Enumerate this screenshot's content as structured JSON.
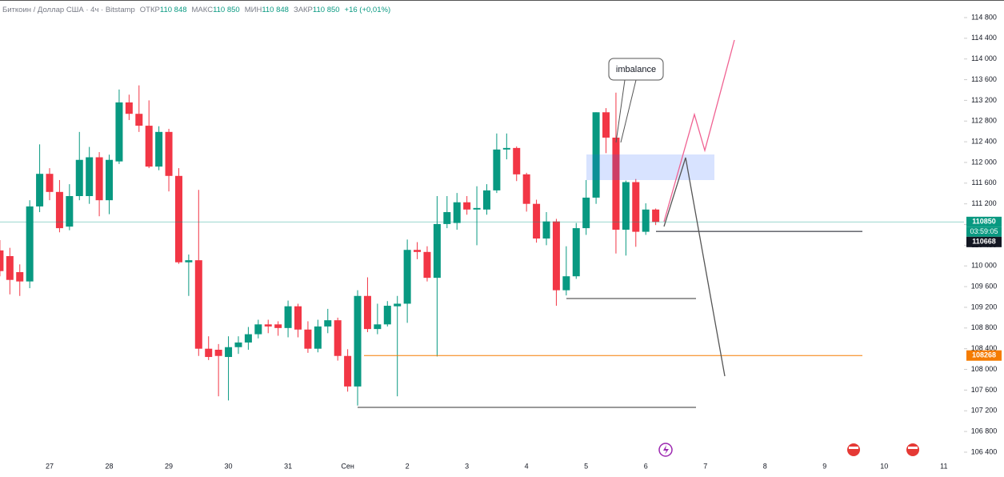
{
  "header": {
    "symbol": "Биткоин / Доллар США · 4ч · Bitstamp",
    "open_label": "ОТКР",
    "open": "110 848",
    "high_label": "МАКС",
    "high": "110 850",
    "low_label": "МИН",
    "low": "110 848",
    "close_label": "ЗАКР",
    "close": "110 850",
    "change": "+16 (+0,01%)"
  },
  "chart_data": {
    "type": "candlestick",
    "annotation": "imbalance",
    "categories": [
      null,
      null,
      null,
      null,
      null,
      "27",
      null,
      null,
      null,
      null,
      null,
      "28",
      null,
      null,
      null,
      null,
      null,
      "29",
      null,
      null,
      null,
      null,
      null,
      "30",
      null,
      null,
      null,
      null,
      null,
      "31",
      null,
      null,
      null,
      null,
      null,
      "Сен",
      null,
      null,
      null,
      null,
      null,
      "2",
      null,
      null,
      null,
      null,
      null,
      "3",
      null,
      null,
      null,
      null,
      null,
      "4",
      null,
      null,
      null,
      null,
      null,
      "5",
      null,
      null,
      null,
      null,
      null,
      "6",
      null,
      null,
      null,
      null,
      null,
      "7",
      null,
      null,
      null,
      null,
      null,
      "8",
      null,
      null,
      null,
      null,
      null,
      "9",
      null,
      null,
      null,
      null,
      null,
      "10",
      null,
      null,
      null,
      null,
      null,
      "11"
    ],
    "open": [
      110300,
      110190,
      109880,
      109700,
      111150,
      111780,
      111430,
      110760,
      111350,
      111350,
      112100,
      111270,
      112020,
      113160,
      112940,
      112710,
      111920,
      112590,
      111740,
      110070,
      110110,
      108400,
      108380,
      108240,
      108430,
      108520,
      108680,
      108870,
      108870,
      108800,
      109220,
      108770,
      108400,
      108830,
      108950,
      108260,
      107670,
      109420,
      108780,
      108870,
      109220,
      109270,
      110310,
      110270,
      109770,
      110810,
      110830,
      111230,
      111090,
      111090,
      111460,
      112250,
      112280,
      111770,
      111200,
      110530,
      110860,
      109530,
      109800,
      110730,
      111320,
      112970,
      112480,
      110700,
      111620,
      110660,
      111090,
      null,
      null,
      null,
      null,
      null,
      null,
      null,
      null,
      null,
      null,
      null,
      null,
      null,
      null,
      null,
      null,
      null,
      null,
      null,
      null,
      null,
      null,
      null,
      null,
      null,
      null,
      null,
      null,
      null
    ],
    "high": [
      110500,
      110350,
      110030,
      111270,
      112350,
      111890,
      111660,
      111580,
      112590,
      112300,
      112200,
      112150,
      113410,
      113310,
      113490,
      113200,
      112700,
      112650,
      111890,
      110220,
      111470,
      108640,
      108490,
      108640,
      108640,
      108820,
      108960,
      108960,
      108930,
      109330,
      109270,
      108930,
      108960,
      109170,
      109000,
      108390,
      109530,
      109780,
      109270,
      109320,
      109420,
      110510,
      110460,
      110380,
      111350,
      111350,
      111410,
      111350,
      111540,
      111580,
      112560,
      112560,
      112310,
      111800,
      111280,
      111040,
      110910,
      110380,
      110830,
      111660,
      112970,
      113050,
      113350,
      111650,
      111680,
      111210,
      111110,
      null,
      null,
      null,
      null,
      null,
      null,
      null,
      null,
      null,
      null,
      null,
      null,
      null,
      null,
      null,
      null,
      null,
      null,
      null,
      null,
      null,
      null,
      null,
      null,
      null,
      null,
      null,
      null,
      null
    ],
    "low": [
      109800,
      109450,
      109420,
      109570,
      111040,
      111270,
      110650,
      110690,
      111270,
      111200,
      110960,
      111000,
      111970,
      112820,
      112590,
      111890,
      111850,
      111440,
      110040,
      109420,
      108260,
      108180,
      107480,
      107400,
      108300,
      108380,
      108600,
      108700,
      108650,
      108620,
      108620,
      108320,
      108330,
      108700,
      108170,
      107570,
      107300,
      108720,
      108680,
      108830,
      107480,
      108900,
      110130,
      109700,
      108250,
      110730,
      110700,
      110990,
      110400,
      110990,
      111410,
      112060,
      111640,
      111050,
      110450,
      110400,
      109230,
      109430,
      109750,
      110600,
      111200,
      112180,
      110240,
      110200,
      110370,
      110600,
      110790,
      null,
      null,
      null,
      null,
      null,
      null,
      null,
      null,
      null,
      null,
      null,
      null,
      null,
      null,
      null,
      null,
      null,
      null,
      null,
      null,
      null,
      null,
      null,
      null,
      null,
      null,
      null,
      null,
      null
    ],
    "close": [
      109900,
      109730,
      109700,
      111150,
      111780,
      111430,
      110730,
      111350,
      112050,
      112100,
      111270,
      112050,
      113160,
      112940,
      112710,
      111920,
      112590,
      111740,
      110070,
      110110,
      108400,
      108240,
      108260,
      108430,
      108520,
      108680,
      108870,
      108830,
      108800,
      109220,
      108770,
      108400,
      108830,
      108950,
      108260,
      107670,
      109420,
      108780,
      108870,
      109230,
      109270,
      110310,
      110270,
      109770,
      110810,
      111040,
      111230,
      111090,
      111120,
      111460,
      112250,
      112280,
      111770,
      111200,
      110530,
      110860,
      109530,
      109800,
      110730,
      111320,
      112970,
      112480,
      110700,
      111620,
      110660,
      111090,
      110850,
      null,
      null,
      null,
      null,
      null,
      null,
      null,
      null,
      null,
      null,
      null,
      null,
      null,
      null,
      null,
      null,
      null,
      null,
      null,
      null,
      null,
      null,
      null,
      null,
      null,
      null,
      null,
      null,
      null
    ],
    "up_color": "#089981",
    "down_color": "#f23645",
    "ylim": [
      106245,
      115140
    ],
    "yticks": [
      {
        "value": 106400,
        "label": "106 400"
      },
      {
        "value": 106800,
        "label": "106 800"
      },
      {
        "value": 107200,
        "label": "107 200"
      },
      {
        "value": 107600,
        "label": "107 600"
      },
      {
        "value": 108000,
        "label": "108 000"
      },
      {
        "value": 108400,
        "label": "108 400"
      },
      {
        "value": 108800,
        "label": "108 800"
      },
      {
        "value": 109200,
        "label": "109 200"
      },
      {
        "value": 109600,
        "label": "109 600"
      },
      {
        "value": 110000,
        "label": "110 000"
      },
      {
        "value": 110400,
        "label": "110 400"
      },
      {
        "value": 110800,
        "label": "110 800"
      },
      {
        "value": 111200,
        "label": "111 200"
      },
      {
        "value": 111600,
        "label": "111 600"
      },
      {
        "value": 112000,
        "label": "112 000"
      },
      {
        "value": 112400,
        "label": "112 400"
      },
      {
        "value": 112800,
        "label": "112 800"
      },
      {
        "value": 113200,
        "label": "113 200"
      },
      {
        "value": 113600,
        "label": "113 600"
      },
      {
        "value": 114000,
        "label": "114 000"
      },
      {
        "value": 114400,
        "label": "114 400"
      },
      {
        "value": 114800,
        "label": "114 800"
      }
    ],
    "price_labels": [
      {
        "value": 110850,
        "color": "#089981"
      },
      {
        "value": 110668,
        "color": "#131722"
      },
      {
        "value": 108268,
        "color": "#f57c00"
      }
    ],
    "countdown": "03:59:05"
  }
}
